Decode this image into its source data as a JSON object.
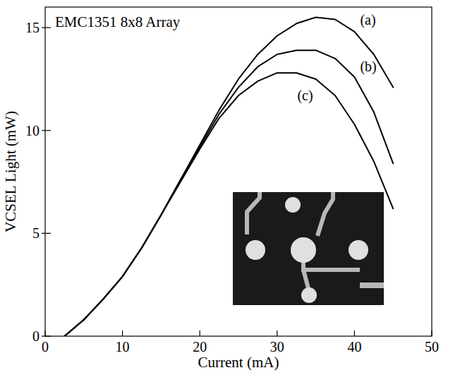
{
  "chart_data": {
    "type": "line",
    "title": "EMC1351 8x8 Array",
    "x_label": "Current (mA)",
    "y_label": "VCSEL Light (mW)",
    "x": [
      2.5,
      5,
      7.5,
      10,
      12.5,
      15,
      17.5,
      20,
      22.5,
      25,
      27.5,
      30,
      32.5,
      35,
      37.5,
      40,
      42.5,
      45
    ],
    "series": [
      {
        "name": "(a)",
        "color": "#000000",
        "values": [
          0,
          0.8,
          1.8,
          2.9,
          4.3,
          5.9,
          7.6,
          9.3,
          11.0,
          12.5,
          13.7,
          14.6,
          15.2,
          15.5,
          15.4,
          14.8,
          13.7,
          12.1
        ]
      },
      {
        "name": "(b)",
        "color": "#000000",
        "values": [
          0,
          0.8,
          1.8,
          2.9,
          4.3,
          5.9,
          7.6,
          9.2,
          10.8,
          12.1,
          13.1,
          13.7,
          13.9,
          13.9,
          13.5,
          12.6,
          10.9,
          8.4
        ]
      },
      {
        "name": "(c)",
        "color": "#000000",
        "values": [
          0,
          0.8,
          1.8,
          2.9,
          4.3,
          5.9,
          7.5,
          9.1,
          10.6,
          11.7,
          12.4,
          12.8,
          12.8,
          12.5,
          11.7,
          10.3,
          8.5,
          6.2
        ]
      }
    ],
    "xlim": [
      0,
      50
    ],
    "xticks": [
      0,
      10,
      20,
      30,
      40,
      50
    ],
    "ylim": [
      0,
      16
    ],
    "yticks": [
      0,
      5,
      10,
      15
    ],
    "grid": false
  }
}
